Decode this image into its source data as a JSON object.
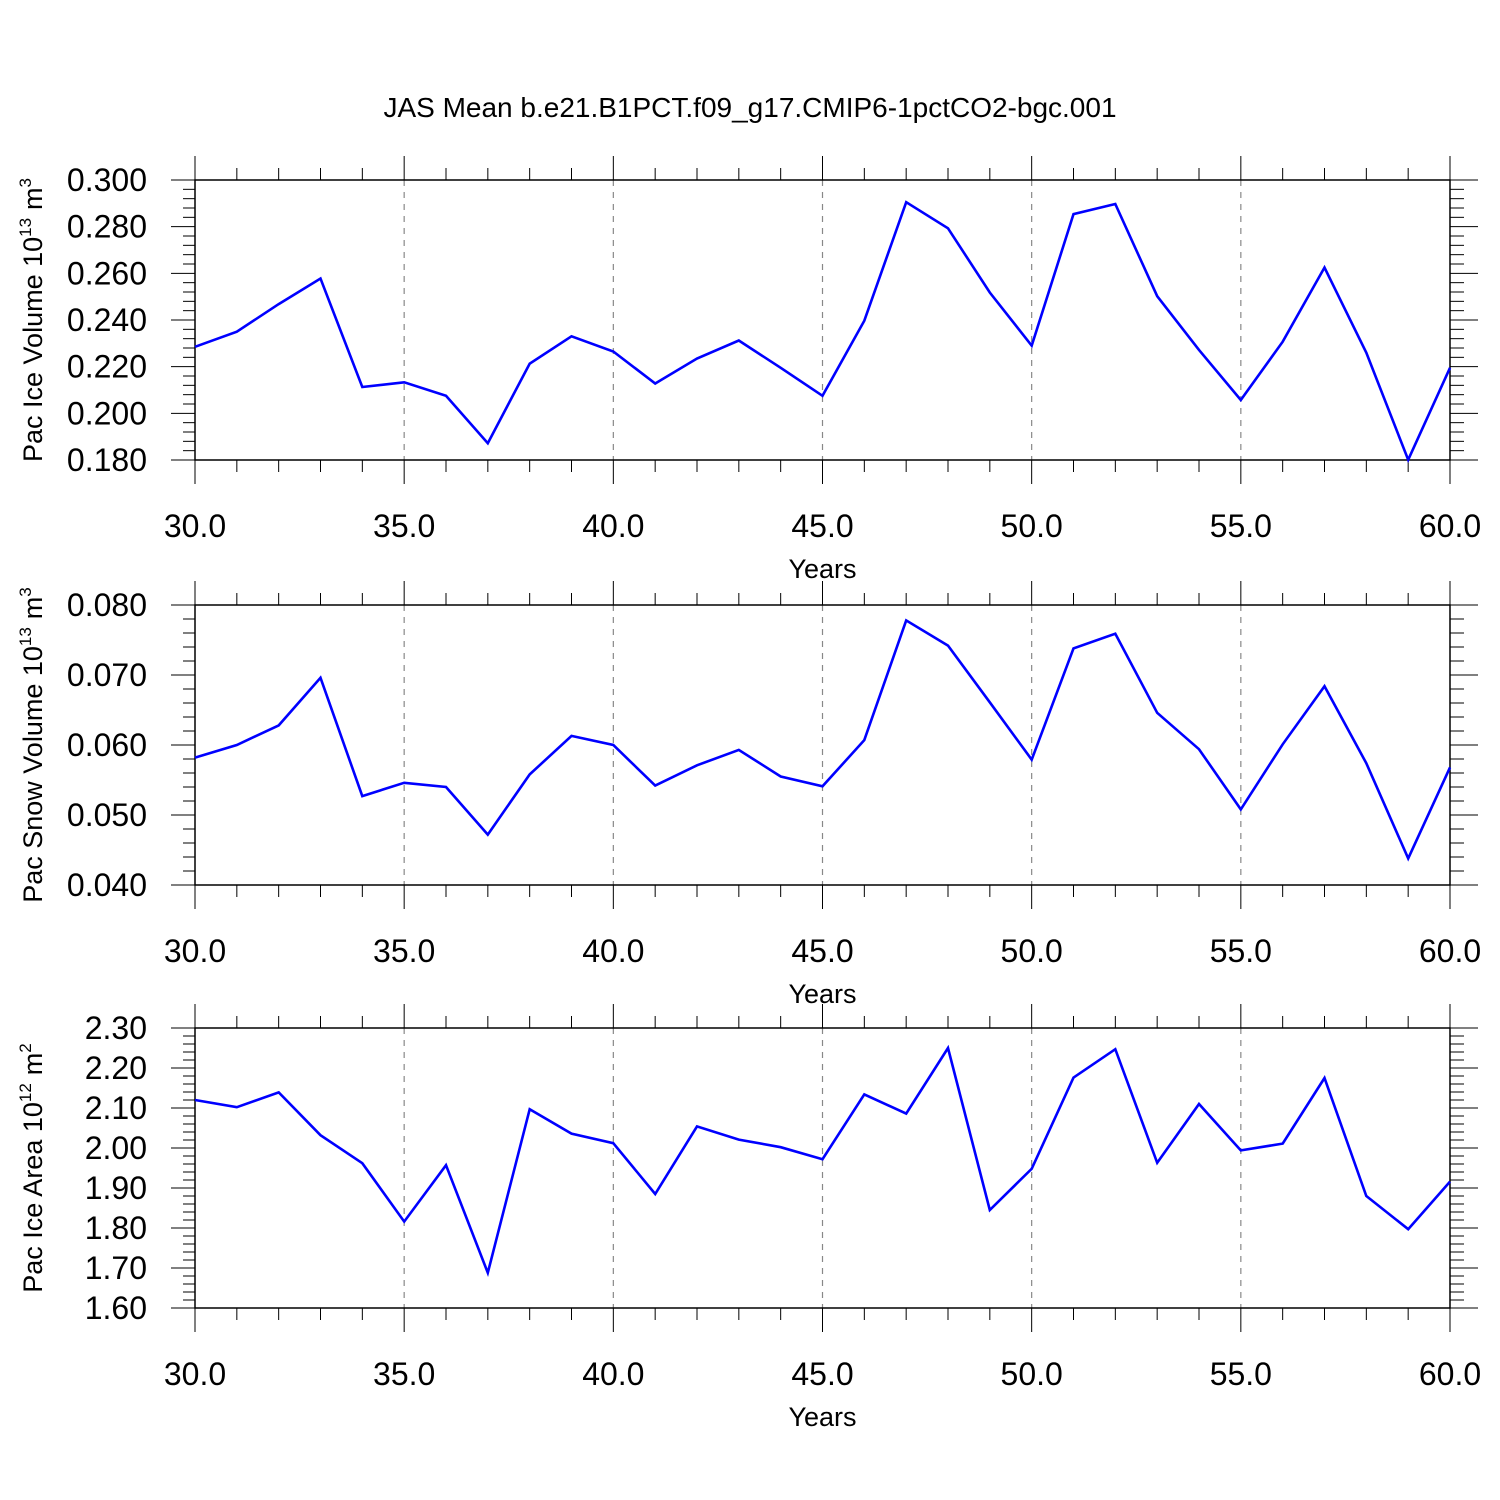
{
  "title": "JAS Mean b.e21.B1PCT.f09_g17.CMIP6-1pctCO2-bgc.001",
  "colors": {
    "series": "#0000ff",
    "axes": "#000000",
    "grid": "#888888"
  },
  "chart_data": [
    {
      "type": "line",
      "xlabel": "Years",
      "ylabel_main": "Pac Ice Volume 10",
      "ylabel_exp": "13",
      "ylabel_unit": "m",
      "ylabel_unit_exp": "3",
      "xlim": [
        30,
        60
      ],
      "ylim": [
        0.18,
        0.3
      ],
      "xticks": [
        "30.0",
        "35.0",
        "40.0",
        "45.0",
        "50.0",
        "55.0",
        "60.0"
      ],
      "yticks": [
        "0.180",
        "0.200",
        "0.220",
        "0.240",
        "0.260",
        "0.280",
        "0.300"
      ],
      "grid": "vertical dashed at major x ticks",
      "x": [
        30,
        31,
        32,
        33,
        34,
        35,
        36,
        37,
        38,
        39,
        40,
        41,
        42,
        43,
        44,
        45,
        46,
        47,
        48,
        49,
        50,
        51,
        52,
        53,
        54,
        55,
        56,
        57,
        58,
        59,
        60
      ],
      "values": [
        0.2285,
        0.235,
        0.2468,
        0.2578,
        0.2113,
        0.2133,
        0.2075,
        0.1872,
        0.2213,
        0.233,
        0.2265,
        0.2128,
        0.2235,
        0.2312,
        0.2195,
        0.2075,
        0.2397,
        0.2905,
        0.2793,
        0.2518,
        0.229,
        0.2854,
        0.2897,
        0.2502,
        0.2272,
        0.2057,
        0.2307,
        0.2625,
        0.226,
        0.1801,
        0.2195
      ]
    },
    {
      "type": "line",
      "xlabel": "Years",
      "ylabel_main": "Pac Snow Volume 10",
      "ylabel_exp": "13",
      "ylabel_unit": "m",
      "ylabel_unit_exp": "3",
      "xlim": [
        30,
        60
      ],
      "ylim": [
        0.04,
        0.08
      ],
      "xticks": [
        "30.0",
        "35.0",
        "40.0",
        "45.0",
        "50.0",
        "55.0",
        "60.0"
      ],
      "yticks": [
        "0.040",
        "0.050",
        "0.060",
        "0.070",
        "0.080"
      ],
      "grid": "vertical dashed at major x ticks",
      "x": [
        30,
        31,
        32,
        33,
        34,
        35,
        36,
        37,
        38,
        39,
        40,
        41,
        42,
        43,
        44,
        45,
        46,
        47,
        48,
        49,
        50,
        51,
        52,
        53,
        54,
        55,
        56,
        57,
        58,
        59,
        60
      ],
      "values": [
        0.0582,
        0.06,
        0.0628,
        0.0696,
        0.0527,
        0.0546,
        0.054,
        0.0472,
        0.0558,
        0.0613,
        0.06,
        0.0542,
        0.0571,
        0.0593,
        0.0555,
        0.0541,
        0.0607,
        0.0778,
        0.0742,
        0.0661,
        0.0579,
        0.0738,
        0.0759,
        0.0646,
        0.0594,
        0.0508,
        0.0601,
        0.0684,
        0.0574,
        0.0438,
        0.0568
      ]
    },
    {
      "type": "line",
      "xlabel": "Years",
      "ylabel_main": "Pac Ice Area 10",
      "ylabel_exp": "12",
      "ylabel_unit": "m",
      "ylabel_unit_exp": "2",
      "xlim": [
        30,
        60
      ],
      "ylim": [
        1.6,
        2.3
      ],
      "xticks": [
        "30.0",
        "35.0",
        "40.0",
        "45.0",
        "50.0",
        "55.0",
        "60.0"
      ],
      "yticks": [
        "1.60",
        "1.70",
        "1.80",
        "1.90",
        "2.00",
        "2.10",
        "2.20",
        "2.30"
      ],
      "grid": "vertical dashed at major x ticks",
      "x": [
        30,
        31,
        32,
        33,
        34,
        35,
        36,
        37,
        38,
        39,
        40,
        41,
        42,
        43,
        44,
        45,
        46,
        47,
        48,
        49,
        50,
        51,
        52,
        53,
        54,
        55,
        56,
        57,
        58,
        59,
        60
      ],
      "values": [
        2.12,
        2.102,
        2.139,
        2.032,
        1.962,
        1.816,
        1.957,
        1.688,
        2.097,
        2.036,
        2.012,
        1.885,
        2.054,
        2.021,
        2.002,
        1.972,
        2.134,
        2.086,
        2.25,
        1.845,
        1.948,
        2.176,
        2.247,
        1.963,
        2.11,
        1.994,
        2.011,
        2.175,
        1.88,
        1.797,
        1.916
      ]
    }
  ]
}
